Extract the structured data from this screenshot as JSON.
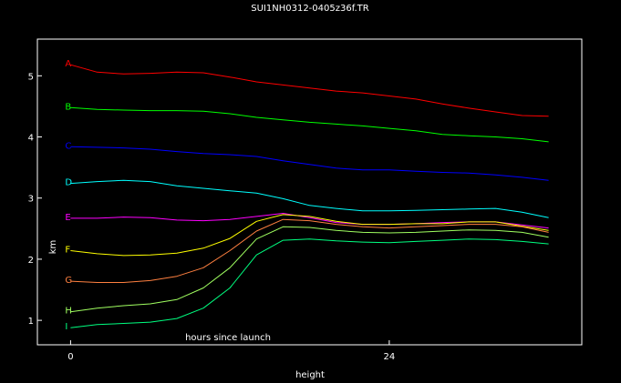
{
  "chart_data": {
    "type": "line",
    "title": "SUI1NH0312-0405z36f.TR",
    "xlabel": "height",
    "annotation": "hours since launch",
    "ylabel": "km",
    "xlim": [
      -2.5,
      38.5
    ],
    "ylim": [
      0.6,
      5.6
    ],
    "xticks": [
      0,
      24
    ],
    "yticks": [
      1,
      2,
      3,
      4,
      5
    ],
    "grid": false,
    "background": "#000000",
    "axis_color": "#ffffff",
    "x": [
      0,
      2,
      4,
      6,
      8,
      10,
      12,
      14,
      16,
      18,
      20,
      22,
      24,
      26,
      28,
      30,
      32,
      34,
      36
    ],
    "series": [
      {
        "name": "A",
        "color": "#ff0000",
        "values": [
          5.18,
          5.06,
          5.03,
          5.04,
          5.06,
          5.05,
          4.98,
          4.9,
          4.85,
          4.8,
          4.75,
          4.72,
          4.67,
          4.62,
          4.54,
          4.47,
          4.41,
          4.35,
          4.34
        ]
      },
      {
        "name": "B",
        "color": "#00ff00",
        "values": [
          4.48,
          4.45,
          4.44,
          4.43,
          4.43,
          4.42,
          4.38,
          4.32,
          4.28,
          4.24,
          4.21,
          4.18,
          4.14,
          4.1,
          4.04,
          4.02,
          4.0,
          3.97,
          3.92
        ]
      },
      {
        "name": "C",
        "color": "#0000ff",
        "values": [
          3.84,
          3.83,
          3.82,
          3.8,
          3.76,
          3.73,
          3.71,
          3.68,
          3.61,
          3.55,
          3.49,
          3.46,
          3.46,
          3.44,
          3.42,
          3.41,
          3.38,
          3.34,
          3.29
        ]
      },
      {
        "name": "D",
        "color": "#00ffff",
        "values": [
          3.24,
          3.27,
          3.29,
          3.27,
          3.2,
          3.16,
          3.12,
          3.08,
          2.99,
          2.88,
          2.83,
          2.79,
          2.79,
          2.8,
          2.81,
          2.82,
          2.83,
          2.77,
          2.68
        ]
      },
      {
        "name": "E",
        "color": "#ff00ff",
        "values": [
          2.67,
          2.67,
          2.69,
          2.68,
          2.64,
          2.63,
          2.65,
          2.7,
          2.75,
          2.68,
          2.6,
          2.57,
          2.57,
          2.58,
          2.6,
          2.61,
          2.61,
          2.56,
          2.51
        ]
      },
      {
        "name": "F",
        "color": "#ffff00",
        "values": [
          2.14,
          2.09,
          2.06,
          2.07,
          2.1,
          2.18,
          2.34,
          2.62,
          2.73,
          2.7,
          2.62,
          2.57,
          2.57,
          2.58,
          2.58,
          2.61,
          2.61,
          2.54,
          2.47
        ]
      },
      {
        "name": "G",
        "color": "#ff8040",
        "values": [
          1.64,
          1.62,
          1.62,
          1.65,
          1.72,
          1.86,
          2.14,
          2.46,
          2.65,
          2.63,
          2.57,
          2.53,
          2.51,
          2.53,
          2.55,
          2.57,
          2.57,
          2.53,
          2.44
        ]
      },
      {
        "name": "H",
        "color": "#a0ff60",
        "values": [
          1.14,
          1.2,
          1.24,
          1.27,
          1.34,
          1.53,
          1.86,
          2.33,
          2.53,
          2.52,
          2.47,
          2.44,
          2.43,
          2.44,
          2.46,
          2.48,
          2.47,
          2.44,
          2.36
        ]
      },
      {
        "name": "I",
        "color": "#00ff80",
        "values": [
          0.88,
          0.93,
          0.95,
          0.97,
          1.03,
          1.2,
          1.53,
          2.07,
          2.31,
          2.33,
          2.3,
          2.28,
          2.27,
          2.29,
          2.31,
          2.33,
          2.32,
          2.29,
          2.25
        ]
      }
    ]
  }
}
